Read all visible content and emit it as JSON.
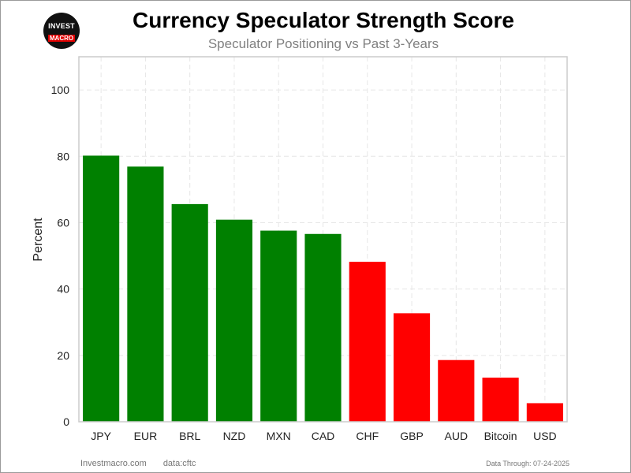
{
  "header": {
    "logo_line1": "INVEST",
    "logo_line2": "MACRO",
    "title": "Currency Speculator Strength Score",
    "subtitle": "Speculator Positioning vs Past 3-Years"
  },
  "footer": {
    "site": "Investmacro.com",
    "source": "data:cftc",
    "date": "Data Through: 07-24-2025"
  },
  "colors": {
    "positive": "#008000",
    "negative": "#ff0000",
    "grid": "#e6e6e6",
    "axis": "#cccccc"
  },
  "chart_data": {
    "type": "bar",
    "title": "Currency Speculator Strength Score",
    "subtitle": "Speculator Positioning vs Past 3-Years",
    "xlabel": "",
    "ylabel": "Percent",
    "categories": [
      "JPY",
      "EUR",
      "BRL",
      "NZD",
      "MXN",
      "CAD",
      "CHF",
      "GBP",
      "AUD",
      "Bitcoin",
      "USD"
    ],
    "values": [
      80.2,
      76.9,
      65.6,
      60.9,
      57.6,
      56.6,
      48.2,
      32.7,
      18.6,
      13.3,
      5.6
    ],
    "bar_colors": [
      "#008000",
      "#008000",
      "#008000",
      "#008000",
      "#008000",
      "#008000",
      "#ff0000",
      "#ff0000",
      "#ff0000",
      "#ff0000",
      "#ff0000"
    ],
    "ylim": [
      0,
      110
    ],
    "yticks": [
      0,
      20,
      40,
      60,
      80,
      100
    ],
    "grid": true,
    "legend": "none"
  }
}
